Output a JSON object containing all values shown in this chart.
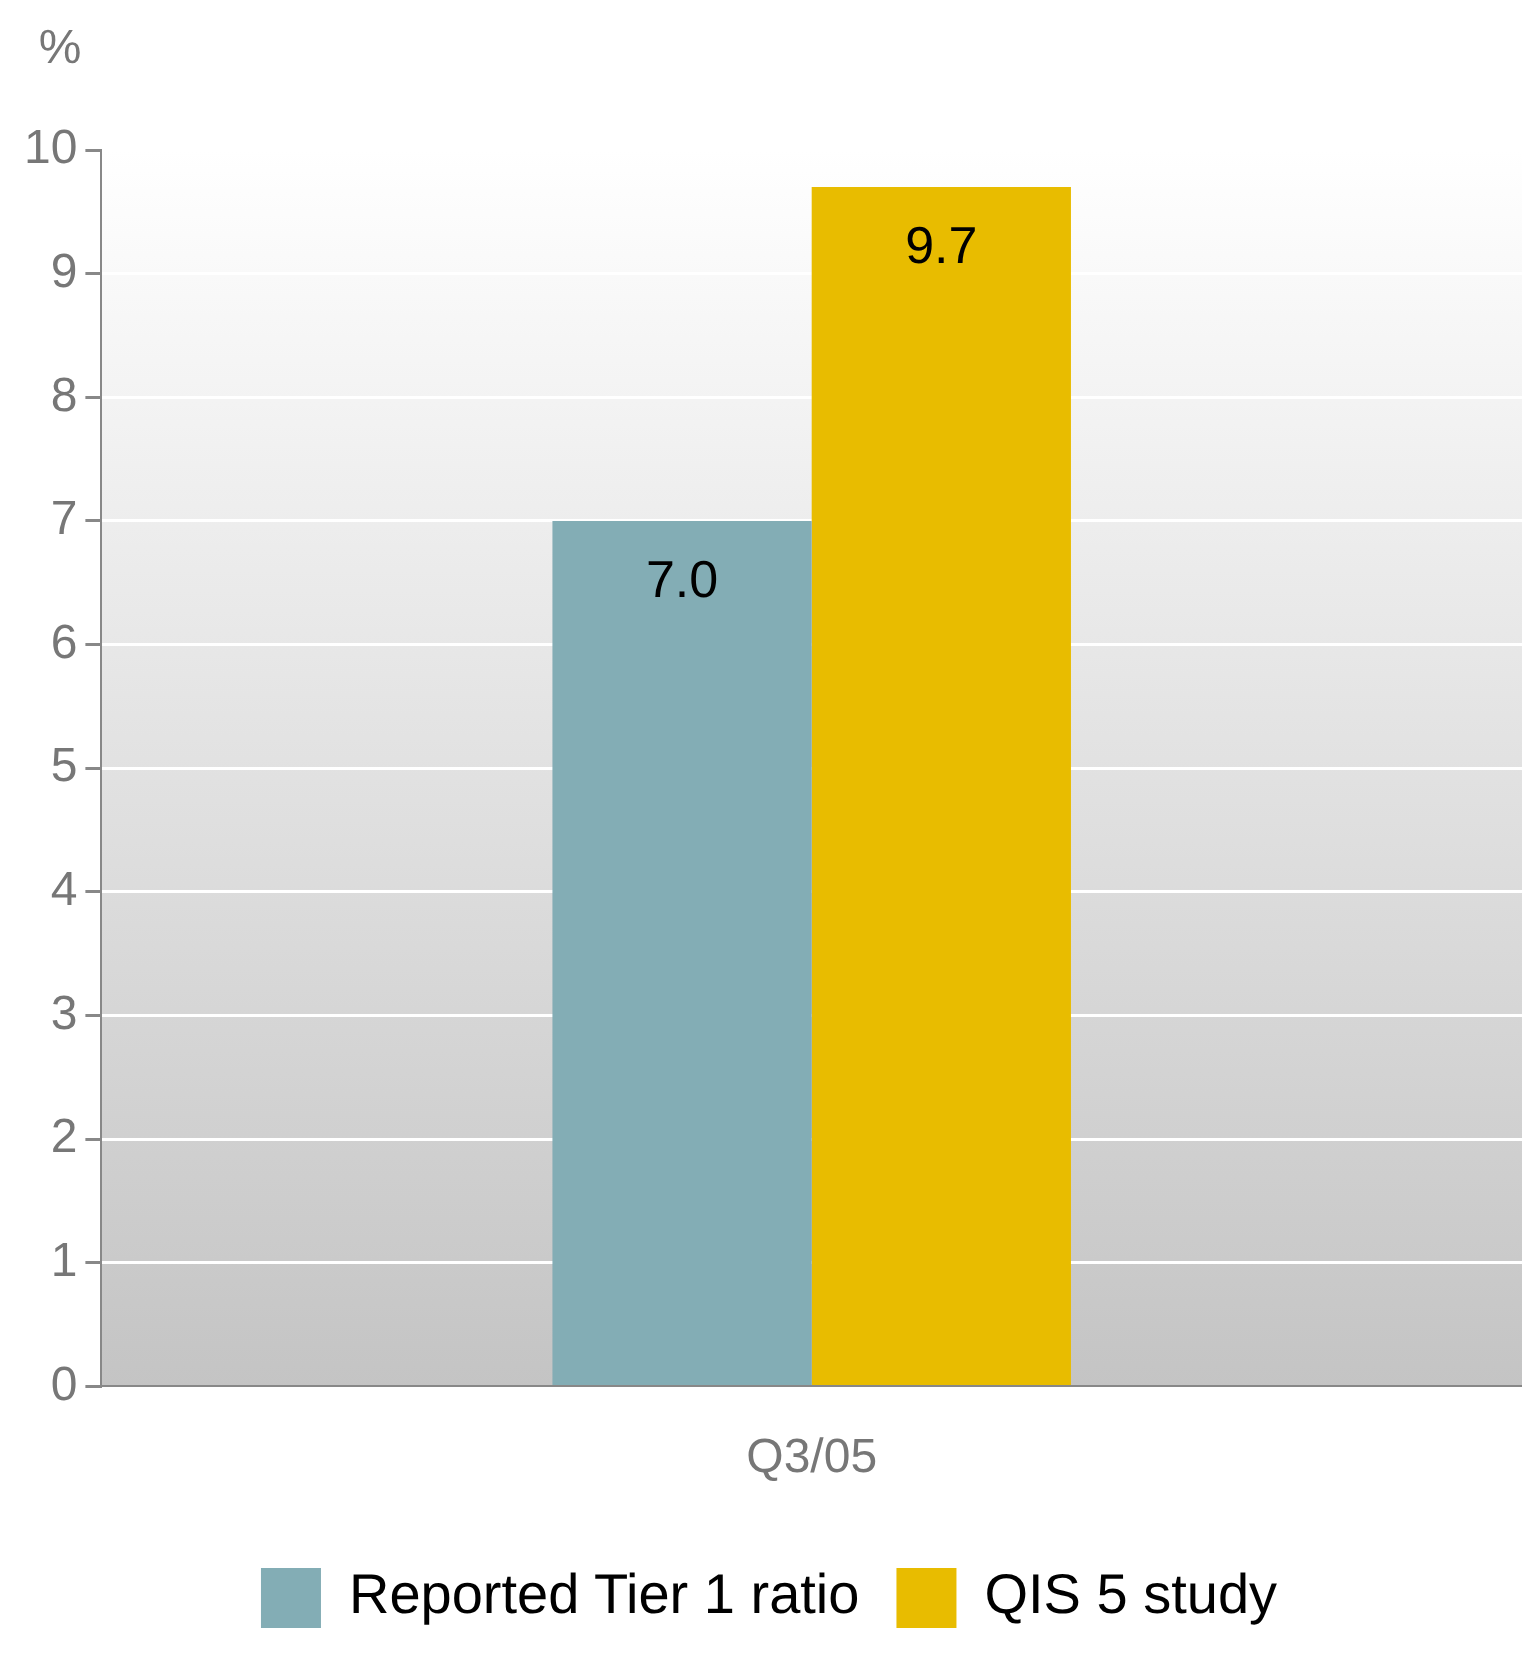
{
  "chart_data": {
    "type": "bar",
    "ylabel": "%",
    "categories": [
      "Q3/05"
    ],
    "series": [
      {
        "name": "Reported Tier 1 ratio",
        "color": "#83adb5",
        "values": [
          7.0
        ],
        "value_labels": [
          "7.0"
        ]
      },
      {
        "name": "QIS 5 study",
        "color": "#e8bc00",
        "values": [
          9.7
        ],
        "value_labels": [
          "9.7"
        ]
      }
    ],
    "ylim": [
      0,
      10
    ],
    "yticks": [
      0,
      1,
      2,
      3,
      4,
      5,
      6,
      7,
      8,
      9,
      10
    ],
    "grid": "y",
    "legend": "bottom"
  }
}
